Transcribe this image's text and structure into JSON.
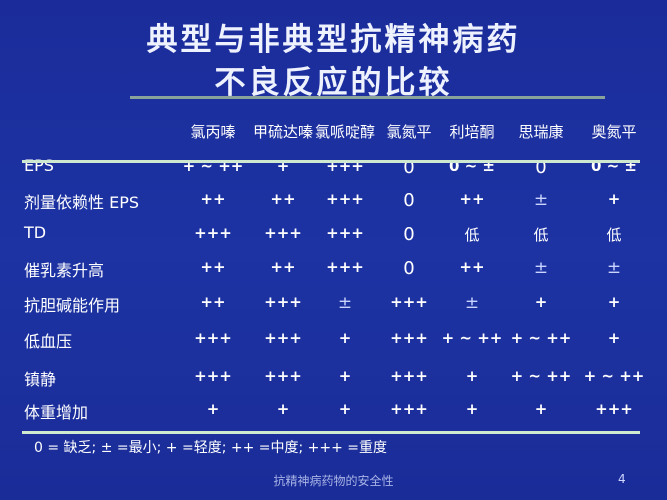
{
  "slide": {
    "title_line1": "典型与非典型抗精神病药",
    "title_line2": "不良反应的比较",
    "columns": [
      "氯丙嗪",
      "甲硫达嗪",
      "氯哌啶醇",
      "氯氮平",
      "利培酮",
      "思瑞康",
      "奥氮平"
    ],
    "rows": [
      {
        "label": "EPS",
        "values": [
          "+ ~ ++",
          "+",
          "+++",
          "0",
          "0 ~ ±",
          "0",
          "0 ~ ±"
        ]
      },
      {
        "label": "剂量依赖性 EPS",
        "values": [
          "++",
          "++",
          "+++",
          "0",
          "++",
          "±",
          "+"
        ]
      },
      {
        "label": "TD",
        "values": [
          "+++",
          "+++",
          "+++",
          "0",
          "低",
          "低",
          "低"
        ]
      },
      {
        "label": "催乳素升高",
        "values": [
          "++",
          "++",
          "+++",
          "0",
          "++",
          "±",
          "±"
        ]
      },
      {
        "label": "抗胆碱能作用",
        "values": [
          "++",
          "+++",
          "±",
          "+++",
          "±",
          "+",
          "+"
        ]
      },
      {
        "label": "低血压",
        "values": [
          "+++",
          "+++",
          "+",
          "+++",
          "+ ~ ++",
          "+ ~ ++",
          "+"
        ]
      },
      {
        "label": "镇静",
        "values": [
          "+++",
          "+++",
          "+",
          "+++",
          "+",
          "+ ~ ++",
          "+ ~ ++"
        ]
      },
      {
        "label": "体重增加",
        "values": [
          "+",
          "+",
          "+",
          "+++",
          "+",
          "+",
          "+++"
        ]
      }
    ],
    "legend": "0 = 缺乏;  ± =最小;  + =轻度;  ++ =中度;  +++ =重度",
    "footer": "抗精神病药物的安全性",
    "page_number": "4"
  },
  "colors": {
    "background": "#1c2f9e",
    "rule": "#cfe8d0",
    "text": "#ffffff"
  }
}
